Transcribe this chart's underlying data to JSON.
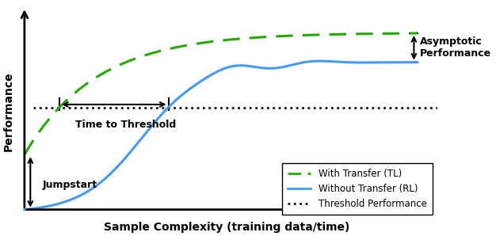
{
  "xlabel": "Sample Complexity (training data/time)",
  "ylabel": "Performance",
  "xlim": [
    0,
    10
  ],
  "ylim": [
    0,
    10
  ],
  "threshold_y": 5.2,
  "tl_start_y": 2.8,
  "rl_start_y": 0.0,
  "tl_color": "#22aa00",
  "rl_color": "#4499ff",
  "threshold_color": "#111111",
  "asymptotic_tl_y": 9.0,
  "asymptotic_rl_y": 7.5,
  "legend_labels": [
    "With Transfer (TL)",
    "Without Transfer (RL)",
    "Threshold Performance"
  ],
  "annotations": {
    "jumpstart": "Jumpstart",
    "time_to_threshold": "Time to Threshold",
    "asymptotic": "Asymptotic\nPerformance"
  },
  "figsize": [
    6.26,
    2.98
  ],
  "dpi": 100
}
